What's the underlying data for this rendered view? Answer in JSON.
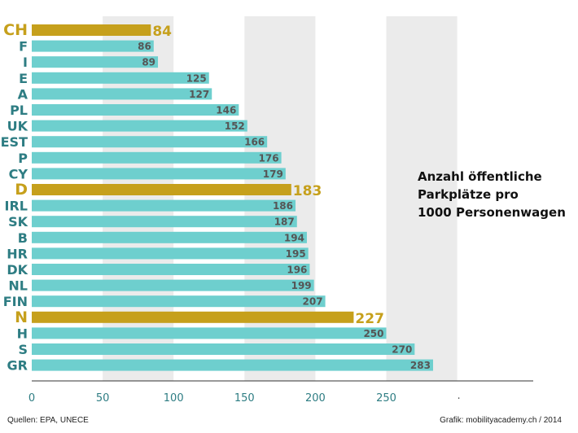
{
  "chart_data": {
    "type": "bar",
    "orientation": "horizontal",
    "title_lines": [
      "Anzahl öffentliche",
      "Parkplätze pro",
      "1000 Personenwagen"
    ],
    "categories": [
      "CH",
      "F",
      "I",
      "E",
      "A",
      "PL",
      "UK",
      "EST",
      "P",
      "CY",
      "D",
      "IRL",
      "SK",
      "B",
      "HR",
      "DK",
      "NL",
      "FIN",
      "N",
      "H",
      "S",
      "GR"
    ],
    "values": [
      84,
      86,
      89,
      125,
      127,
      146,
      152,
      166,
      176,
      179,
      183,
      186,
      187,
      194,
      195,
      196,
      199,
      207,
      227,
      250,
      270,
      283
    ],
    "highlighted": [
      "CH",
      "D",
      "N"
    ],
    "xlim": [
      0,
      350
    ],
    "xticks": [
      0,
      50,
      100,
      150,
      200,
      250
    ],
    "extra_tick_label": ".",
    "colors": {
      "bar": "#6ecfce",
      "highlight": "#c6a01c",
      "label": "#2e7d83",
      "value_text": "#555555",
      "band": "#ebebeb"
    }
  },
  "footer": {
    "source": "Quellen:  EPA, UNECE",
    "credit": "Grafik:  mobilityacademy.ch / 2014"
  }
}
